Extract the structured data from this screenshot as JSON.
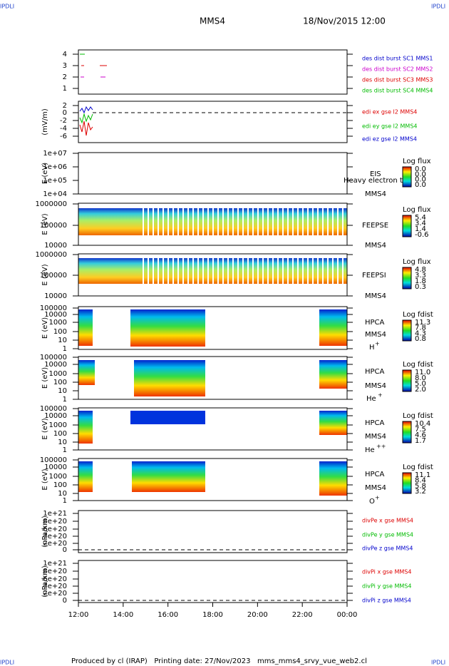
{
  "header": {
    "left_tag": "IPDLI",
    "right_tag": "IPDLI",
    "title": "MMS4",
    "date": "18/Nov/2015 12:00"
  },
  "footer": {
    "text": "Produced by cl (IRAP)   Printing date: 27/Nov/2023   mms_mms4_srvy_vue_web2.cl",
    "left_tag": "IPDLI",
    "right_tag": "IPDLI"
  },
  "xticks": [
    "12:00",
    "14:00",
    "16:00",
    "18:00",
    "20:00",
    "22:00",
    "00:00"
  ],
  "panels": [
    {
      "yticks": [
        "4",
        "3",
        "2",
        "1"
      ],
      "legend": [
        {
          "text": "des dist burst SC1 MMS1",
          "color": "#0000cc"
        },
        {
          "text": "des dist burst SC2 MMS2",
          "color": "#cc00cc"
        },
        {
          "text": "des dist burst SC3 MMS3",
          "color": "#dd0000"
        },
        {
          "text": "des dist burst SC4 MMS4",
          "color": "#00bb00"
        }
      ]
    },
    {
      "ylabel": "(mV/m)",
      "yticks": [
        "2",
        "0",
        "-2",
        "-4",
        "-6"
      ],
      "legend": [
        {
          "text": "edi ex gse l2 MMS4",
          "color": "#dd0000"
        },
        {
          "text": "edi ey gse l2 MMS4",
          "color": "#00bb00"
        },
        {
          "text": "edi ez gse l2 MMS4",
          "color": "#0000cc"
        }
      ]
    },
    {
      "ylabel": "E (eV)",
      "yticks": [
        "1e+07",
        "1e+06",
        "1e+05",
        "1e+04"
      ],
      "note": "Heavy electron to",
      "instrument": "EIS",
      "spacecraft": "MMS4",
      "colorbar": {
        "title": "Log flux",
        "labels": [
          "0.0",
          "0.0",
          "0.0",
          "0.0"
        ]
      }
    },
    {
      "ylabel": "E (eV)",
      "yticks": [
        "1000000",
        "100000",
        "10000"
      ],
      "instrument": "FEEPSE",
      "spacecraft": "MMS4",
      "colorbar": {
        "title": "Log flux",
        "labels": [
          "5.4",
          "3.4",
          "1.4",
          "-0.6"
        ]
      }
    },
    {
      "ylabel": "E (eV)",
      "yticks": [
        "1000000",
        "100000",
        "10000"
      ],
      "instrument": "FEEPSI",
      "spacecraft": "MMS4",
      "colorbar": {
        "title": "Log flux",
        "labels": [
          "4.8",
          "3.3",
          "1.8",
          "0.3"
        ]
      }
    },
    {
      "ylabel": "E (eV)",
      "yticks": [
        "100000",
        "10000",
        "1000",
        "100",
        "10",
        "1"
      ],
      "instrument": "HPCA",
      "spacecraft": "MMS4",
      "species": "H",
      "species_sup": "+",
      "colorbar": {
        "title": "Log fdist",
        "labels": [
          "11.3",
          "7.8",
          "4.3",
          "0.8"
        ]
      }
    },
    {
      "ylabel": "E (eV)",
      "yticks": [
        "100000",
        "10000",
        "1000",
        "100",
        "10",
        "1"
      ],
      "instrument": "HPCA",
      "spacecraft": "MMS4",
      "species": "He",
      "species_sup": "+",
      "colorbar": {
        "title": "Log fdist",
        "labels": [
          "11.0",
          "8.0",
          "5.0",
          "2.0"
        ]
      }
    },
    {
      "ylabel": "E (eV)",
      "yticks": [
        "100000",
        "10000",
        "1000",
        "100",
        "10",
        "1"
      ],
      "instrument": "HPCA",
      "spacecraft": "MMS4",
      "species": "He",
      "species_sup": "++",
      "colorbar": {
        "title": "Log fdist",
        "labels": [
          "10.4",
          "7.5",
          "4.6",
          "1.7"
        ]
      }
    },
    {
      "ylabel": "E (eV)",
      "yticks": [
        "100000",
        "10000",
        "1000",
        "100",
        "10",
        "1"
      ],
      "instrument": "HPCA",
      "spacecraft": "MMS4",
      "species": "O",
      "species_sup": "+",
      "colorbar": {
        "title": "Log fdist",
        "labels": [
          "11.1",
          "8.4",
          "5.8",
          "3.2"
        ]
      }
    },
    {
      "ylabel": "(nPa/km)",
      "yticks": [
        "1e+21",
        "8e+20",
        "6e+20",
        "4e+20",
        "2e+20",
        "0"
      ],
      "legend": [
        {
          "text": "divPe x gse MMS4",
          "color": "#dd0000"
        },
        {
          "text": "divPe y gse MMS4",
          "color": "#00bb00"
        },
        {
          "text": "divPe z gse MMS4",
          "color": "#0000cc"
        }
      ]
    },
    {
      "ylabel": "(nPa/km)",
      "yticks": [
        "1e+21",
        "8e+20",
        "6e+20",
        "4e+20",
        "2e+20",
        "0"
      ],
      "legend": [
        {
          "text": "divPi x gse MMS4",
          "color": "#dd0000"
        },
        {
          "text": "divPi y gse MMS4",
          "color": "#00bb00"
        },
        {
          "text": "divPi z gse MMS4",
          "color": "#0000cc"
        }
      ]
    }
  ]
}
